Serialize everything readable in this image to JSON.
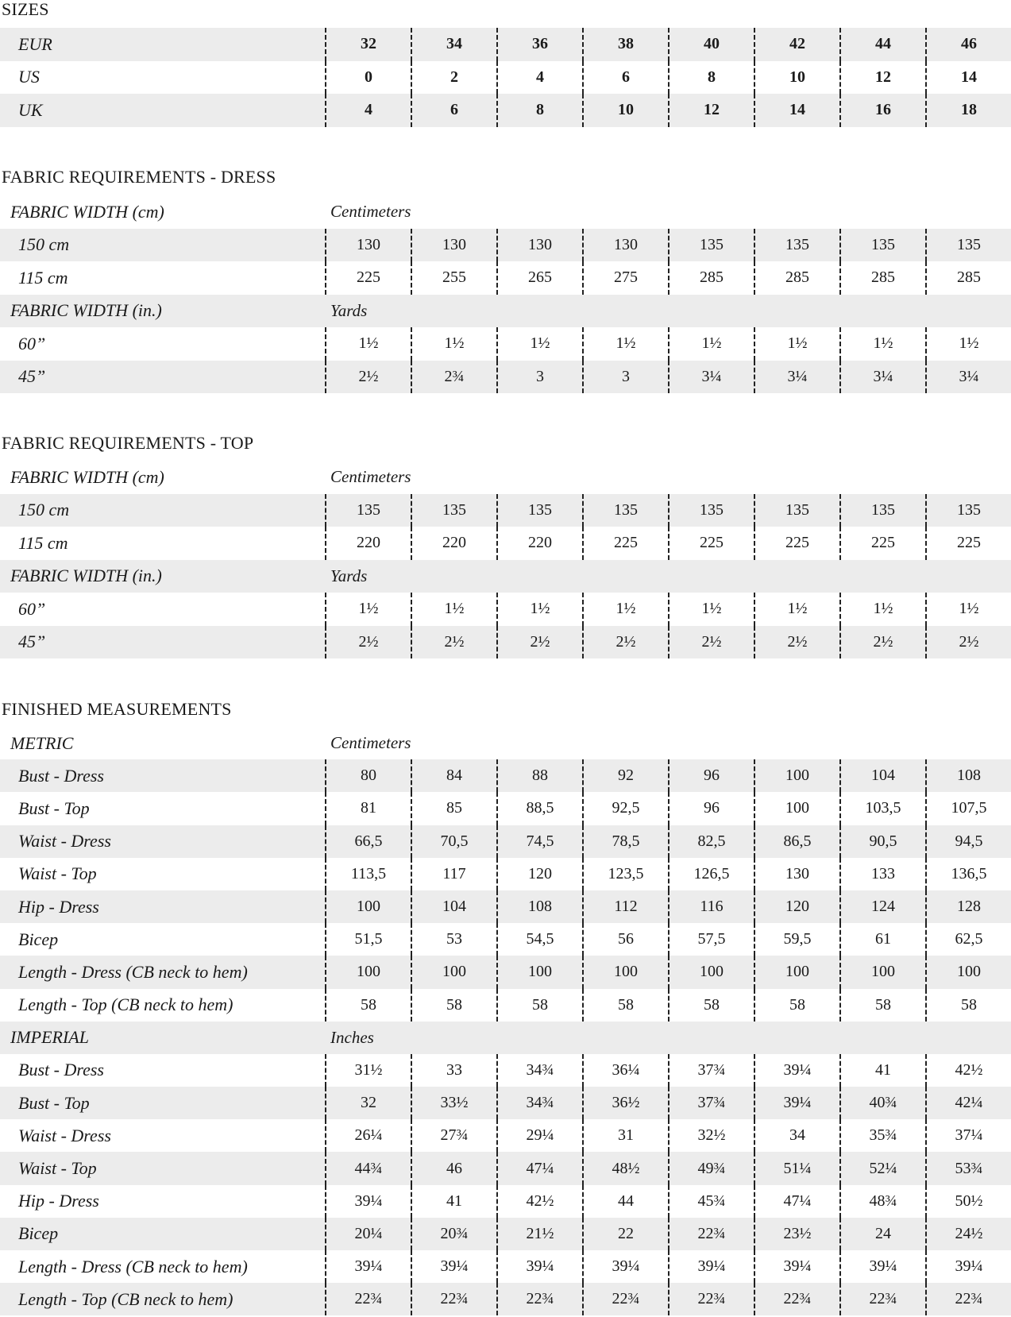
{
  "sections": [
    {
      "title": "SIZES",
      "rows": [
        {
          "label": "EUR",
          "values": [
            "32",
            "34",
            "36",
            "38",
            "40",
            "42",
            "44",
            "46"
          ]
        },
        {
          "label": "US",
          "values": [
            "0",
            "2",
            "4",
            "6",
            "8",
            "10",
            "12",
            "14"
          ]
        },
        {
          "label": "UK",
          "values": [
            "4",
            "6",
            "8",
            "10",
            "12",
            "14",
            "16",
            "18"
          ]
        }
      ]
    },
    {
      "title": "FABRIC REQUIREMENTS - DRESS",
      "rows": [
        {
          "header": "FABRIC WIDTH (cm)",
          "unit": "Centimeters"
        },
        {
          "label": "150 cm",
          "values": [
            "130",
            "130",
            "130",
            "130",
            "135",
            "135",
            "135",
            "135"
          ]
        },
        {
          "label": "115 cm",
          "values": [
            "225",
            "255",
            "265",
            "275",
            "285",
            "285",
            "285",
            "285"
          ]
        },
        {
          "header": "FABRIC WIDTH (in.)",
          "unit": "Yards"
        },
        {
          "label": "60”",
          "values": [
            "1½",
            "1½",
            "1½",
            "1½",
            "1½",
            "1½",
            "1½",
            "1½"
          ]
        },
        {
          "label": "45”",
          "values": [
            "2½",
            "2¾",
            "3",
            "3",
            "3¼",
            "3¼",
            "3¼",
            "3¼"
          ]
        }
      ]
    },
    {
      "title": "FABRIC REQUIREMENTS - TOP",
      "rows": [
        {
          "header": "FABRIC WIDTH (cm)",
          "unit": "Centimeters"
        },
        {
          "label": "150 cm",
          "values": [
            "135",
            "135",
            "135",
            "135",
            "135",
            "135",
            "135",
            "135"
          ]
        },
        {
          "label": "115 cm",
          "values": [
            "220",
            "220",
            "220",
            "225",
            "225",
            "225",
            "225",
            "225"
          ]
        },
        {
          "header": "FABRIC WIDTH (in.)",
          "unit": "Yards"
        },
        {
          "label": "60”",
          "values": [
            "1½",
            "1½",
            "1½",
            "1½",
            "1½",
            "1½",
            "1½",
            "1½"
          ]
        },
        {
          "label": "45”",
          "values": [
            "2½",
            "2½",
            "2½",
            "2½",
            "2½",
            "2½",
            "2½",
            "2½"
          ]
        }
      ]
    },
    {
      "title": "FINISHED MEASUREMENTS",
      "rows": [
        {
          "header": "METRIC",
          "unit": "Centimeters"
        },
        {
          "label": "Bust - Dress",
          "values": [
            "80",
            "84",
            "88",
            "92",
            "96",
            "100",
            "104",
            "108"
          ]
        },
        {
          "label": "Bust - Top",
          "values": [
            "81",
            "85",
            "88,5",
            "92,5",
            "96",
            "100",
            "103,5",
            "107,5"
          ]
        },
        {
          "label": "Waist - Dress",
          "values": [
            "66,5",
            "70,5",
            "74,5",
            "78,5",
            "82,5",
            "86,5",
            "90,5",
            "94,5"
          ]
        },
        {
          "label": "Waist - Top",
          "values": [
            "113,5",
            "117",
            "120",
            "123,5",
            "126,5",
            "130",
            "133",
            "136,5"
          ]
        },
        {
          "label": "Hip - Dress",
          "values": [
            "100",
            "104",
            "108",
            "112",
            "116",
            "120",
            "124",
            "128"
          ]
        },
        {
          "label": "Bicep",
          "values": [
            "51,5",
            "53",
            "54,5",
            "56",
            "57,5",
            "59,5",
            "61",
            "62,5"
          ]
        },
        {
          "label": "Length - Dress (CB neck to hem)",
          "values": [
            "100",
            "100",
            "100",
            "100",
            "100",
            "100",
            "100",
            "100"
          ]
        },
        {
          "label": "Length - Top (CB neck to hem)",
          "values": [
            "58",
            "58",
            "58",
            "58",
            "58",
            "58",
            "58",
            "58"
          ]
        },
        {
          "header": "IMPERIAL",
          "unit": "Inches"
        },
        {
          "label": "Bust - Dress",
          "values": [
            "31½",
            "33",
            "34¾",
            "36¼",
            "37¾",
            "39¼",
            "41",
            "42½"
          ]
        },
        {
          "label": "Bust - Top",
          "values": [
            "32",
            "33½",
            "34¾",
            "36½",
            "37¾",
            "39¼",
            "40¾",
            "42¼"
          ]
        },
        {
          "label": "Waist - Dress",
          "values": [
            "26¼",
            "27¾",
            "29¼",
            "31",
            "32½",
            "34",
            "35¾",
            "37¼"
          ]
        },
        {
          "label": "Waist - Top",
          "values": [
            "44¾",
            "46",
            "47¼",
            "48½",
            "49¾",
            "51¼",
            "52¼",
            "53¾"
          ]
        },
        {
          "label": "Hip - Dress",
          "values": [
            "39¼",
            "41",
            "42½",
            "44",
            "45¾",
            "47¼",
            "48¾",
            "50½"
          ]
        },
        {
          "label": "Bicep",
          "values": [
            "20¼",
            "20¾",
            "21½",
            "22",
            "22¾",
            "23½",
            "24",
            "24½"
          ]
        },
        {
          "label": "Length - Dress (CB neck to hem)",
          "values": [
            "39¼",
            "39¼",
            "39¼",
            "39¼",
            "39¼",
            "39¼",
            "39¼",
            "39¼"
          ]
        },
        {
          "label": "Length - Top (CB neck to hem)",
          "values": [
            "22¾",
            "22¾",
            "22¾",
            "22¾",
            "22¾",
            "22¾",
            "22¾",
            "22¾"
          ]
        }
      ]
    }
  ],
  "colors": {
    "stripe": "#ececec",
    "text": "#1a1a1a",
    "divider": "#222222"
  }
}
